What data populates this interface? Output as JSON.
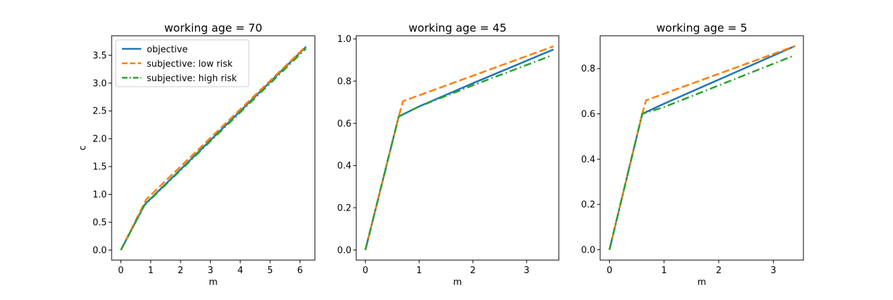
{
  "colors": {
    "objective": "#1f77b4",
    "low_risk": "#ff7f0e",
    "high_risk": "#2ca02c",
    "axis": "#000000"
  },
  "legend": {
    "placement": "top-left",
    "entries": [
      {
        "label": "objective",
        "color": "#1f77b4",
        "style": "solid"
      },
      {
        "label": "subjective: low risk",
        "color": "#ff7f0e",
        "style": "dashed"
      },
      {
        "label": "subjective: high risk",
        "color": "#2ca02c",
        "style": "dashdot"
      }
    ]
  },
  "chart_data": [
    {
      "type": "line",
      "title": "working age = 70",
      "xlabel": "m",
      "ylabel": "c",
      "xlim": [
        -0.31,
        6.5
      ],
      "ylim": [
        -0.18,
        3.85
      ],
      "xticks": [
        0,
        1,
        2,
        3,
        4,
        5,
        6
      ],
      "yticks": [
        0.0,
        0.5,
        1.0,
        1.5,
        2.0,
        2.5,
        3.0,
        3.5
      ],
      "ytick_labels": [
        "0.0",
        "0.5",
        "1.0",
        "1.5",
        "2.0",
        "2.5",
        "3.0",
        "3.5"
      ],
      "legend": true,
      "grid": false,
      "series": [
        {
          "name": "objective",
          "color": "#1f77b4",
          "style": "solid",
          "x": [
            0,
            0.8,
            6.2
          ],
          "y": [
            0,
            0.82,
            3.65
          ]
        },
        {
          "name": "subjective: low risk",
          "color": "#ff7f0e",
          "style": "dashed",
          "x": [
            0,
            0.85,
            6.2
          ],
          "y": [
            0,
            0.91,
            3.66
          ]
        },
        {
          "name": "subjective: high risk",
          "color": "#2ca02c",
          "style": "dashdot",
          "x": [
            0,
            0.78,
            6.2
          ],
          "y": [
            0,
            0.8,
            3.62
          ]
        }
      ]
    },
    {
      "type": "line",
      "title": "working age = 45",
      "xlabel": "m",
      "ylabel": "",
      "xlim": [
        -0.17,
        3.6
      ],
      "ylim": [
        -0.048,
        1.015
      ],
      "xticks": [
        0,
        1,
        2,
        3
      ],
      "yticks": [
        0.0,
        0.2,
        0.4,
        0.6,
        0.8,
        1.0
      ],
      "ytick_labels": [
        "0.0",
        "0.2",
        "0.4",
        "0.6",
        "0.8",
        "1.0"
      ],
      "legend": false,
      "grid": false,
      "series": [
        {
          "name": "objective",
          "color": "#1f77b4",
          "style": "solid",
          "x": [
            0,
            0.62,
            1.0,
            2.0,
            3.5
          ],
          "y": [
            0,
            0.632,
            0.68,
            0.79,
            0.95
          ]
        },
        {
          "name": "subjective: low risk",
          "color": "#ff7f0e",
          "style": "dashed",
          "x": [
            0,
            0.62,
            0.7,
            3.5
          ],
          "y": [
            0,
            0.632,
            0.705,
            0.965
          ]
        },
        {
          "name": "subjective: high risk",
          "color": "#2ca02c",
          "style": "dashdot",
          "x": [
            0,
            0.62,
            1.0,
            2.0,
            3.45
          ],
          "y": [
            0,
            0.632,
            0.68,
            0.78,
            0.92
          ]
        }
      ]
    },
    {
      "type": "line",
      "title": "working age = 5",
      "xlabel": "m",
      "ylabel": "",
      "xlim": [
        -0.17,
        3.55
      ],
      "ylim": [
        -0.046,
        0.945
      ],
      "xticks": [
        0,
        1,
        2,
        3
      ],
      "yticks": [
        0.0,
        0.2,
        0.4,
        0.6,
        0.8
      ],
      "ytick_labels": [
        "0.0",
        "0.2",
        "0.4",
        "0.6",
        "0.8"
      ],
      "legend": false,
      "grid": false,
      "series": [
        {
          "name": "objective",
          "color": "#1f77b4",
          "style": "solid",
          "x": [
            0,
            0.6,
            1.0,
            3.4
          ],
          "y": [
            0,
            0.6,
            0.645,
            0.9
          ]
        },
        {
          "name": "subjective: low risk",
          "color": "#ff7f0e",
          "style": "dashed",
          "x": [
            0,
            0.6,
            0.67,
            3.4
          ],
          "y": [
            0,
            0.6,
            0.66,
            0.9
          ]
        },
        {
          "name": "subjective: high risk",
          "color": "#2ca02c",
          "style": "dashdot",
          "x": [
            0,
            0.6,
            1.0,
            3.35
          ],
          "y": [
            0,
            0.6,
            0.63,
            0.855
          ]
        }
      ]
    }
  ]
}
